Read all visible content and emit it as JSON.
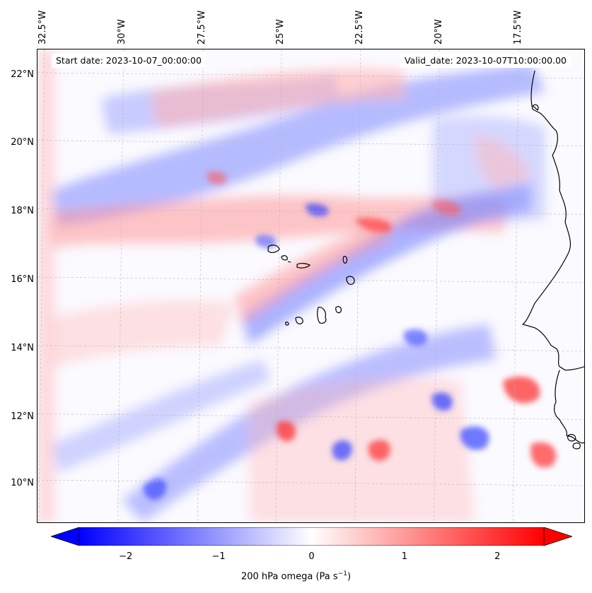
{
  "map": {
    "longitude_labels": [
      "32.5°W",
      "30°W",
      "27.5°W",
      "25°W",
      "22.5°W",
      "20°W",
      "17.5°W"
    ],
    "latitude_labels": [
      "22°N",
      "20°N",
      "18°N",
      "16°N",
      "14°N",
      "12°N",
      "10°N"
    ],
    "start_date": "Start date: 2023-10-07_00:00:00",
    "valid_date": "Valid_date: 2023-10-07T10:00:00.00",
    "field": "200 hPa omega",
    "colormap": "bwr",
    "colors": {
      "negative": "#0000ff",
      "zero": "#ffffff",
      "positive": "#ff0000",
      "coastline": "#000000",
      "gridline": "#b0b0b0"
    },
    "gridlines": true,
    "features": [
      "coastline",
      "Cape Verde islands",
      "West African coast"
    ]
  },
  "colorbar": {
    "min": -2.5,
    "max": 2.5,
    "extend": "both",
    "ticks": [
      "−2",
      "−1",
      "0",
      "1",
      "2"
    ],
    "tick_values": [
      -2,
      -1,
      0,
      1,
      2
    ],
    "label": "200 hPa omega (Pa s",
    "label_exponent": "−1",
    "label_close": ")"
  }
}
